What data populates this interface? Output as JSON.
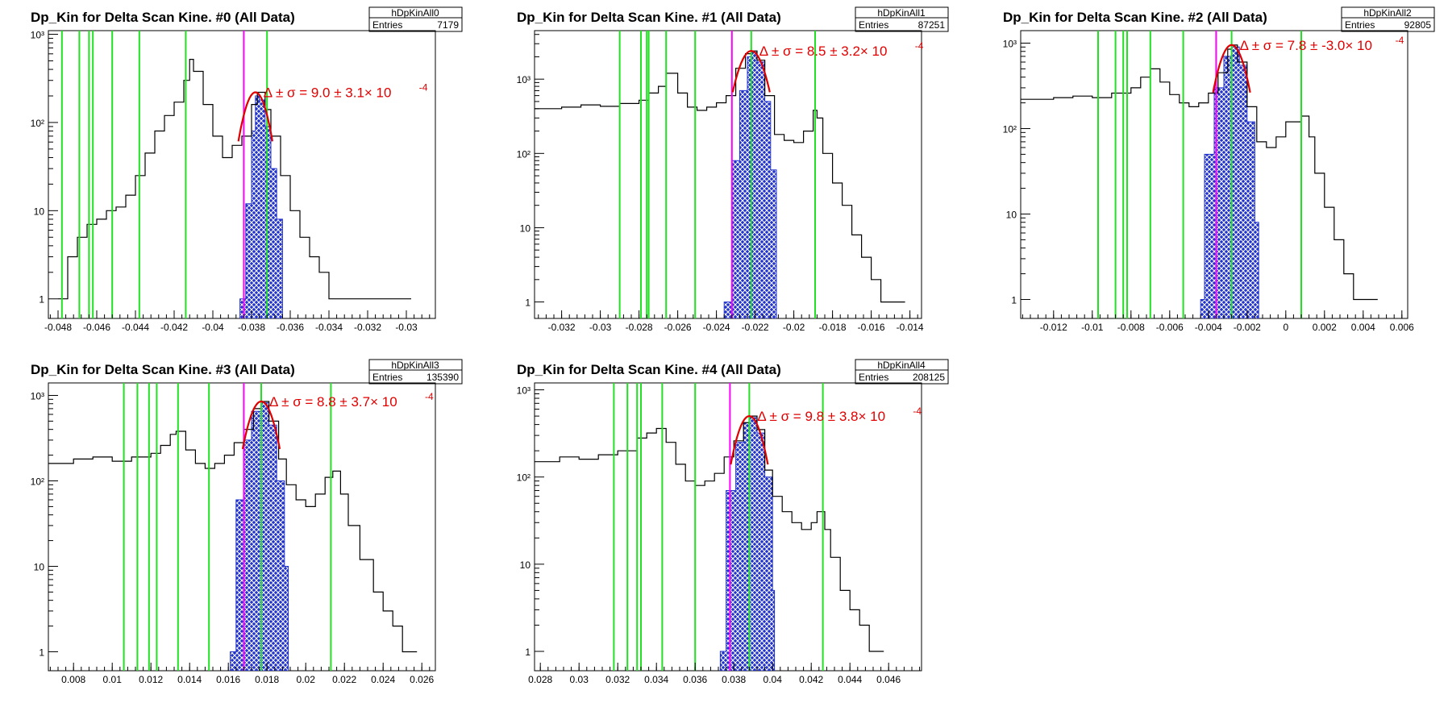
{
  "colors": {
    "vline": "#22e022",
    "peak_line": "#ff00ff",
    "fill": "#2233cc",
    "fit": "#e00000",
    "histogram": "#000000"
  },
  "chart_data": [
    {
      "type": "histogram",
      "title": "Dp_Kin for Delta Scan Kine. #0 (All Data)",
      "stats_name": "hDpKinAll0",
      "entries_label": "Entries",
      "entries": "7179",
      "fit_label": "Δ ± σ = 9.0 ± 3.1× 10",
      "fit_exponent": "-4",
      "yscale": "log",
      "xlim": [
        -0.0485,
        -0.0285
      ],
      "ylim": [
        0.6,
        1100
      ],
      "xticks": [
        -0.048,
        -0.046,
        -0.044,
        -0.042,
        -0.04,
        -0.038,
        -0.036,
        -0.034,
        -0.032,
        -0.03
      ],
      "xtick_labels": [
        "-0.048",
        "-0.046",
        "-0.044",
        "-0.042",
        "-0.04",
        "-0.038",
        "-0.036",
        "-0.034",
        "-0.032",
        "-0.03"
      ],
      "yticks": [
        1,
        10,
        100,
        1000
      ],
      "ytick_labels": [
        "1",
        "10",
        "10²",
        "10³"
      ],
      "vlines": [
        -0.0478,
        -0.0469,
        -0.0464,
        -0.0462,
        -0.0452,
        -0.0438,
        -0.0414,
        -0.0372
      ],
      "peak_line": -0.0384,
      "fit_mean": -0.0378,
      "fit_sigma": 0.00055,
      "fit_amp": 220,
      "histogram": [
        [
          -0.048,
          1
        ],
        [
          -0.0475,
          3
        ],
        [
          -0.047,
          5
        ],
        [
          -0.0465,
          7
        ],
        [
          -0.046,
          8
        ],
        [
          -0.0455,
          10
        ],
        [
          -0.045,
          11
        ],
        [
          -0.0445,
          15
        ],
        [
          -0.044,
          25
        ],
        [
          -0.0435,
          45
        ],
        [
          -0.043,
          80
        ],
        [
          -0.0425,
          120
        ],
        [
          -0.042,
          170
        ],
        [
          -0.0415,
          300
        ],
        [
          -0.0412,
          520
        ],
        [
          -0.041,
          380
        ],
        [
          -0.0405,
          160
        ],
        [
          -0.04,
          70
        ],
        [
          -0.0395,
          40
        ],
        [
          -0.039,
          55
        ],
        [
          -0.0385,
          70
        ],
        [
          -0.038,
          160
        ],
        [
          -0.0377,
          220
        ],
        [
          -0.0373,
          140
        ],
        [
          -0.037,
          70
        ],
        [
          -0.0365,
          25
        ],
        [
          -0.036,
          10
        ],
        [
          -0.0355,
          5
        ],
        [
          -0.035,
          3
        ],
        [
          -0.0345,
          2
        ],
        [
          -0.034,
          1
        ],
        [
          -0.0335,
          1
        ],
        [
          -0.033,
          1
        ],
        [
          -0.032,
          1
        ],
        [
          -0.031,
          1
        ],
        [
          -0.03,
          1
        ]
      ],
      "filled": [
        [
          -0.0386,
          1
        ],
        [
          -0.0383,
          12
        ],
        [
          -0.038,
          80
        ],
        [
          -0.0378,
          200
        ],
        [
          -0.0376,
          180
        ],
        [
          -0.0373,
          90
        ],
        [
          -0.037,
          30
        ],
        [
          -0.0367,
          8
        ],
        [
          -0.0364,
          1
        ]
      ]
    },
    {
      "type": "histogram",
      "title": "Dp_Kin for Delta Scan Kine. #1 (All Data)",
      "stats_name": "hDpKinAll1",
      "entries_label": "Entries",
      "entries": "87251",
      "fit_label": "Δ ± σ = 8.5 ± 3.2× 10",
      "fit_exponent": "-4",
      "yscale": "log",
      "xlim": [
        -0.0334,
        -0.0134
      ],
      "ylim": [
        0.6,
        4500
      ],
      "xticks": [
        -0.032,
        -0.03,
        -0.028,
        -0.026,
        -0.024,
        -0.022,
        -0.02,
        -0.018,
        -0.016,
        -0.014
      ],
      "xtick_labels": [
        "-0.032",
        "-0.03",
        "-0.028",
        "-0.026",
        "-0.024",
        "-0.022",
        "-0.02",
        "-0.018",
        "-0.016",
        "-0.014"
      ],
      "yticks": [
        1,
        10,
        100,
        1000
      ],
      "ytick_labels": [
        "1",
        "10",
        "10²",
        "10³"
      ],
      "vlines": [
        -0.029,
        -0.0279,
        -0.0276,
        -0.0275,
        -0.0266,
        -0.0251,
        -0.0222,
        -0.0189
      ],
      "peak_line": -0.0232,
      "fit_mean": -0.0222,
      "fit_sigma": 0.0006,
      "fit_amp": 2400,
      "histogram": [
        [
          -0.0334,
          400
        ],
        [
          -0.032,
          420
        ],
        [
          -0.031,
          450
        ],
        [
          -0.03,
          430
        ],
        [
          -0.029,
          470
        ],
        [
          -0.028,
          520
        ],
        [
          -0.0275,
          650
        ],
        [
          -0.027,
          800
        ],
        [
          -0.0266,
          1200
        ],
        [
          -0.026,
          650
        ],
        [
          -0.0255,
          420
        ],
        [
          -0.025,
          380
        ],
        [
          -0.0245,
          420
        ],
        [
          -0.024,
          480
        ],
        [
          -0.0235,
          600
        ],
        [
          -0.023,
          1400
        ],
        [
          -0.0225,
          2200
        ],
        [
          -0.0222,
          2400
        ],
        [
          -0.0219,
          1800
        ],
        [
          -0.0215,
          600
        ],
        [
          -0.021,
          180
        ],
        [
          -0.0205,
          150
        ],
        [
          -0.02,
          140
        ],
        [
          -0.0195,
          200
        ],
        [
          -0.019,
          380
        ],
        [
          -0.0188,
          300
        ],
        [
          -0.0185,
          100
        ],
        [
          -0.018,
          40
        ],
        [
          -0.0175,
          20
        ],
        [
          -0.017,
          8
        ],
        [
          -0.0165,
          4
        ],
        [
          -0.016,
          2
        ],
        [
          -0.0155,
          1
        ],
        [
          -0.015,
          1
        ],
        [
          -0.0145,
          1
        ]
      ],
      "filled": [
        [
          -0.0236,
          1
        ],
        [
          -0.0232,
          80
        ],
        [
          -0.0228,
          700
        ],
        [
          -0.0224,
          2000
        ],
        [
          -0.0222,
          2300
        ],
        [
          -0.0219,
          1700
        ],
        [
          -0.0215,
          500
        ],
        [
          -0.0212,
          60
        ],
        [
          -0.0209,
          1
        ]
      ]
    },
    {
      "type": "histogram",
      "title": "Dp_Kin for Delta Scan Kine. #2 (All Data)",
      "stats_name": "hDpKinAll2",
      "entries_label": "Entries",
      "entries": "92805",
      "fit_label": "Δ ± σ = 7.8 ± -3.0× 10",
      "fit_exponent": "-4",
      "yscale": "log",
      "xlim": [
        -0.0137,
        0.0063
      ],
      "ylim": [
        0.6,
        1400
      ],
      "xticks": [
        -0.012,
        -0.01,
        -0.008,
        -0.006,
        -0.004,
        -0.002,
        0,
        0.002,
        0.004,
        0.006
      ],
      "xtick_labels": [
        "-0.012",
        "-0.01",
        "-0.008",
        "-0.006",
        "-0.004",
        "-0.002",
        "0",
        "0.002",
        "0.004",
        "0.006"
      ],
      "yticks": [
        1,
        10,
        100,
        1000
      ],
      "ytick_labels": [
        "1",
        "10",
        "10²",
        "10³"
      ],
      "vlines": [
        -0.0097,
        -0.0088,
        -0.0084,
        -0.0082,
        -0.007,
        -0.0053,
        -0.0028,
        0.0008
      ],
      "peak_line": -0.0036,
      "fit_mean": -0.0028,
      "fit_sigma": 0.0006,
      "fit_amp": 950,
      "histogram": [
        [
          -0.0137,
          220
        ],
        [
          -0.012,
          230
        ],
        [
          -0.011,
          240
        ],
        [
          -0.01,
          230
        ],
        [
          -0.009,
          260
        ],
        [
          -0.008,
          300
        ],
        [
          -0.0075,
          400
        ],
        [
          -0.007,
          500
        ],
        [
          -0.0065,
          350
        ],
        [
          -0.006,
          250
        ],
        [
          -0.0055,
          200
        ],
        [
          -0.005,
          180
        ],
        [
          -0.0045,
          200
        ],
        [
          -0.004,
          260
        ],
        [
          -0.0035,
          450
        ],
        [
          -0.003,
          850
        ],
        [
          -0.0028,
          950
        ],
        [
          -0.0025,
          600
        ],
        [
          -0.002,
          180
        ],
        [
          -0.0015,
          70
        ],
        [
          -0.001,
          60
        ],
        [
          -0.0005,
          80
        ],
        [
          0,
          120
        ],
        [
          0.0008,
          140
        ],
        [
          0.0012,
          80
        ],
        [
          0.0015,
          30
        ],
        [
          0.002,
          12
        ],
        [
          0.0025,
          5
        ],
        [
          0.003,
          2
        ],
        [
          0.0035,
          1
        ],
        [
          0.004,
          1
        ],
        [
          0.0045,
          1
        ]
      ],
      "filled": [
        [
          -0.0044,
          1
        ],
        [
          -0.0042,
          50
        ],
        [
          -0.0037,
          300
        ],
        [
          -0.0032,
          700
        ],
        [
          -0.0028,
          900
        ],
        [
          -0.0024,
          550
        ],
        [
          -0.002,
          120
        ],
        [
          -0.0016,
          8
        ],
        [
          -0.0014,
          1
        ]
      ]
    },
    {
      "type": "histogram",
      "title": "Dp_Kin for Delta Scan Kine. #3 (All Data)",
      "stats_name": "hDpKinAll3",
      "entries_label": "Entries",
      "entries": "135390",
      "fit_label": "Δ ± σ = 8.8 ± 3.7× 10",
      "fit_exponent": "-4",
      "yscale": "log",
      "xlim": [
        0.0067,
        0.0267
      ],
      "ylim": [
        0.6,
        1400
      ],
      "xticks": [
        0.008,
        0.01,
        0.012,
        0.014,
        0.016,
        0.018,
        0.02,
        0.022,
        0.024,
        0.026
      ],
      "xtick_labels": [
        "0.008",
        "0.01",
        "0.012",
        "0.014",
        "0.016",
        "0.018",
        "0.02",
        "0.022",
        "0.024",
        "0.026"
      ],
      "yticks": [
        1,
        10,
        100,
        1000
      ],
      "ytick_labels": [
        "1",
        "10",
        "10²",
        "10³"
      ],
      "vlines": [
        0.0106,
        0.0113,
        0.0119,
        0.0123,
        0.0134,
        0.015,
        0.0177,
        0.0213
      ],
      "peak_line": 0.0168,
      "fit_mean": 0.0177,
      "fit_sigma": 0.0006,
      "fit_amp": 850,
      "histogram": [
        [
          0.0067,
          160
        ],
        [
          0.008,
          180
        ],
        [
          0.009,
          190
        ],
        [
          0.01,
          170
        ],
        [
          0.011,
          190
        ],
        [
          0.012,
          210
        ],
        [
          0.0125,
          260
        ],
        [
          0.013,
          350
        ],
        [
          0.0133,
          380
        ],
        [
          0.0138,
          230
        ],
        [
          0.0143,
          160
        ],
        [
          0.0148,
          140
        ],
        [
          0.0153,
          160
        ],
        [
          0.0158,
          200
        ],
        [
          0.0163,
          280
        ],
        [
          0.0168,
          400
        ],
        [
          0.0173,
          700
        ],
        [
          0.0177,
          850
        ],
        [
          0.0181,
          500
        ],
        [
          0.0186,
          180
        ],
        [
          0.019,
          90
        ],
        [
          0.0195,
          60
        ],
        [
          0.02,
          50
        ],
        [
          0.0205,
          70
        ],
        [
          0.021,
          110
        ],
        [
          0.0214,
          130
        ],
        [
          0.0218,
          70
        ],
        [
          0.0222,
          30
        ],
        [
          0.0228,
          12
        ],
        [
          0.0235,
          5
        ],
        [
          0.024,
          3
        ],
        [
          0.0245,
          2
        ],
        [
          0.025,
          1
        ],
        [
          0.0255,
          1
        ]
      ],
      "filled": [
        [
          0.0161,
          1
        ],
        [
          0.0164,
          60
        ],
        [
          0.0168,
          300
        ],
        [
          0.0172,
          650
        ],
        [
          0.0177,
          820
        ],
        [
          0.0181,
          450
        ],
        [
          0.0185,
          100
        ],
        [
          0.0189,
          10
        ],
        [
          0.0191,
          1
        ]
      ]
    },
    {
      "type": "histogram",
      "title": "Dp_Kin for Delta Scan Kine. #4 (All Data)",
      "stats_name": "hDpKinAll4",
      "entries_label": "Entries",
      "entries": "208125",
      "fit_label": "Δ ± σ = 9.8 ± 3.8× 10",
      "fit_exponent": "-4",
      "yscale": "log",
      "xlim": [
        0.0277,
        0.0477
      ],
      "ylim": [
        0.6,
        1200
      ],
      "xticks": [
        0.028,
        0.03,
        0.032,
        0.034,
        0.036,
        0.038,
        0.04,
        0.042,
        0.044,
        0.046
      ],
      "xtick_labels": [
        "0.028",
        "0.03",
        "0.032",
        "0.034",
        "0.036",
        "0.038",
        "0.04",
        "0.042",
        "0.044",
        "0.046"
      ],
      "yticks": [
        1,
        10,
        100,
        1000
      ],
      "ytick_labels": [
        "1",
        "10",
        "10²",
        "10³"
      ],
      "vlines": [
        0.0318,
        0.0325,
        0.033,
        0.0332,
        0.0343,
        0.036,
        0.0388,
        0.0426
      ],
      "peak_line": 0.0378,
      "fit_mean": 0.0388,
      "fit_sigma": 0.0006,
      "fit_amp": 500,
      "histogram": [
        [
          0.0277,
          150
        ],
        [
          0.029,
          170
        ],
        [
          0.03,
          160
        ],
        [
          0.031,
          180
        ],
        [
          0.032,
          200
        ],
        [
          0.033,
          280
        ],
        [
          0.0335,
          320
        ],
        [
          0.034,
          360
        ],
        [
          0.0345,
          250
        ],
        [
          0.035,
          140
        ],
        [
          0.0355,
          90
        ],
        [
          0.036,
          80
        ],
        [
          0.0365,
          90
        ],
        [
          0.037,
          110
        ],
        [
          0.0375,
          170
        ],
        [
          0.038,
          260
        ],
        [
          0.0385,
          420
        ],
        [
          0.0388,
          500
        ],
        [
          0.0392,
          350
        ],
        [
          0.0396,
          120
        ],
        [
          0.04,
          60
        ],
        [
          0.0405,
          40
        ],
        [
          0.041,
          30
        ],
        [
          0.0415,
          25
        ],
        [
          0.042,
          30
        ],
        [
          0.0423,
          40
        ],
        [
          0.0427,
          25
        ],
        [
          0.043,
          12
        ],
        [
          0.0435,
          5
        ],
        [
          0.044,
          3
        ],
        [
          0.0445,
          2
        ],
        [
          0.045,
          1
        ],
        [
          0.0455,
          1
        ]
      ],
      "filled": [
        [
          0.0373,
          1
        ],
        [
          0.0376,
          70
        ],
        [
          0.0381,
          250
        ],
        [
          0.0385,
          420
        ],
        [
          0.0388,
          480
        ],
        [
          0.0392,
          320
        ],
        [
          0.0396,
          100
        ],
        [
          0.04,
          5
        ],
        [
          0.0401,
          1
        ]
      ]
    }
  ]
}
